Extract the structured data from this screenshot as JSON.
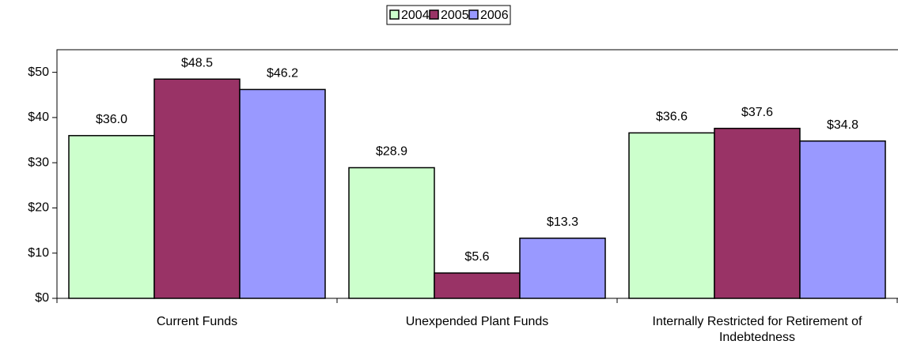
{
  "chart_data": {
    "type": "bar",
    "categories": [
      "Current Funds",
      "Unexpended Plant Funds",
      "Internally Restricted for Retirement of Indebtedness"
    ],
    "series": [
      {
        "name": "2004",
        "color": "#ccffcc",
        "values": [
          36.0,
          28.9,
          36.6
        ],
        "value_labels": [
          "$36.0",
          "$28.9",
          "$36.6"
        ]
      },
      {
        "name": "2005",
        "color": "#993366",
        "values": [
          48.5,
          5.6,
          37.6
        ],
        "value_labels": [
          "$48.5",
          "$5.6",
          "$37.6"
        ]
      },
      {
        "name": "2006",
        "color": "#9999ff",
        "values": [
          46.2,
          13.3,
          34.8
        ],
        "value_labels": [
          "$46.2",
          "$13.3",
          "$34.8"
        ]
      }
    ],
    "ylim": [
      0,
      55
    ],
    "yticks": [
      {
        "value": 0,
        "label": "$0"
      },
      {
        "value": 10,
        "label": "$10"
      },
      {
        "value": 20,
        "label": "$20"
      },
      {
        "value": 30,
        "label": "$30"
      },
      {
        "value": 40,
        "label": "$40"
      },
      {
        "value": 50,
        "label": "$50"
      }
    ],
    "legend": "top"
  }
}
